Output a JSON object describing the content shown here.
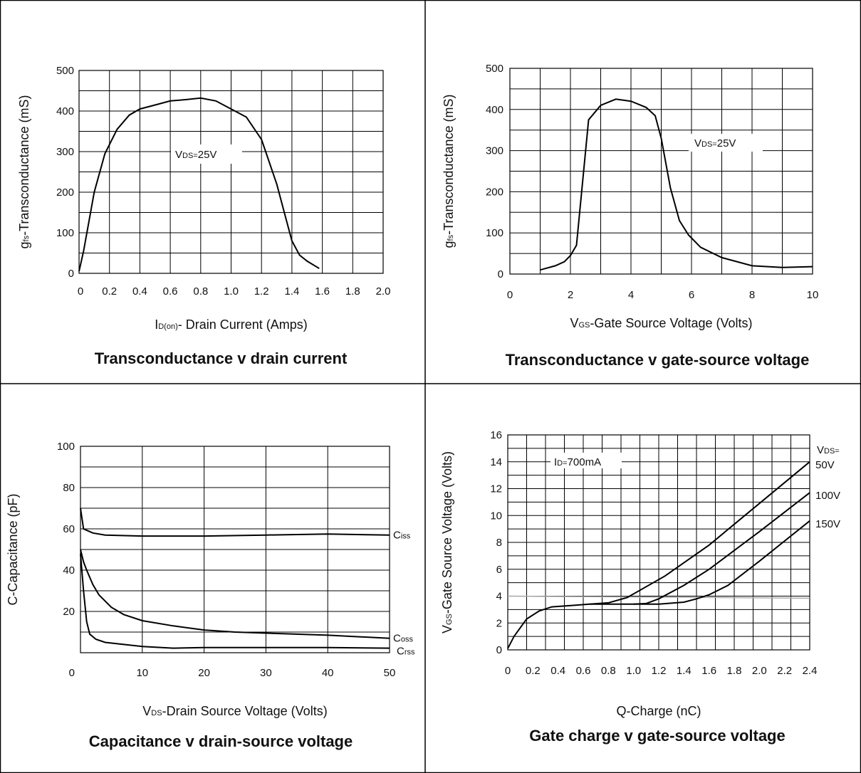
{
  "chart_data": [
    {
      "type": "line",
      "title": "Transconductance v drain current",
      "ylabel_sub": "fs",
      "ylabel_pre": "g",
      "ylabel_post": "-Transconductance (mS)",
      "xlabel_pre": "I",
      "xlabel_sub": "D(on)",
      "xlabel_post": "- Drain Current (Amps)",
      "xticks": [
        "0",
        "0.2",
        "0.4",
        "0.6",
        "0.8",
        "1.0",
        "1.2",
        "1.4",
        "1.6",
        "1.8",
        "2.0"
      ],
      "yticks": [
        "0",
        "100",
        "200",
        "300",
        "400",
        "500"
      ],
      "xlim": [
        0,
        2.0
      ],
      "ylim": [
        0,
        500
      ],
      "x_gridlines": 10,
      "y_gridlines": 10,
      "annotation": {
        "pre": "V",
        "sub": "DS=",
        "post": "25V",
        "x": 0.62,
        "y": 297
      },
      "series": [
        {
          "x": [
            0,
            0.03,
            0.1,
            0.17,
            0.25,
            0.33,
            0.4,
            0.5,
            0.6,
            0.7,
            0.8,
            0.9,
            1.0,
            1.1,
            1.2,
            1.3,
            1.35,
            1.4,
            1.45,
            1.5,
            1.58
          ],
          "y": [
            5,
            55,
            200,
            295,
            355,
            390,
            405,
            415,
            425,
            428,
            432,
            425,
            405,
            385,
            330,
            220,
            150,
            80,
            45,
            30,
            12
          ]
        }
      ]
    },
    {
      "type": "line",
      "title": "Transconductance v gate-source voltage",
      "ylabel_pre": "g",
      "ylabel_sub": "fs",
      "ylabel_post": "-Transconductance (mS)",
      "xlabel_pre": "V",
      "xlabel_sub": "GS",
      "xlabel_post": "-Gate Source Voltage (Volts)",
      "xticks": [
        "0",
        "2",
        "4",
        "6",
        "8",
        "10"
      ],
      "yticks": [
        "0",
        "100",
        "200",
        "300",
        "400",
        "500"
      ],
      "xlim": [
        0,
        10
      ],
      "ylim": [
        0,
        500
      ],
      "x_gridlines": 10,
      "y_gridlines": 10,
      "annotation": {
        "pre": "V",
        "sub": "DS=",
        "post": "25V",
        "x": 6.75,
        "y": 320
      },
      "series": [
        {
          "x": [
            1.0,
            1.5,
            1.8,
            2.0,
            2.2,
            2.6,
            3.0,
            3.5,
            4.0,
            4.5,
            4.8,
            5.0,
            5.3,
            5.6,
            5.9,
            6.3,
            7.0,
            8.0,
            9.0,
            10.0
          ],
          "y": [
            10,
            20,
            30,
            45,
            70,
            375,
            410,
            425,
            420,
            405,
            385,
            330,
            210,
            130,
            95,
            65,
            40,
            20,
            16,
            18
          ]
        }
      ]
    },
    {
      "type": "line",
      "title": "Capacitance v drain-source voltage",
      "ylabel": "C-Capacitance (pF)",
      "xlabel_pre": "V",
      "xlabel_sub": "DS",
      "xlabel_post": "-Drain Source Voltage (Volts)",
      "xticks": [
        "0",
        "10",
        "20",
        "30",
        "40",
        "50"
      ],
      "yticks": [
        "20",
        "40",
        "60",
        "80",
        "100"
      ],
      "xlim": [
        0,
        50
      ],
      "ylim": [
        0,
        100
      ],
      "x_gridlines": 5,
      "y_gridlines": 10,
      "series": [
        {
          "name_pre": "C",
          "name_sub": "iss",
          "x": [
            0,
            0.5,
            2,
            4,
            10,
            20,
            30,
            40,
            50
          ],
          "y": [
            70,
            60,
            58,
            57,
            56.5,
            56.5,
            57,
            57.5,
            57
          ]
        },
        {
          "name_pre": "C",
          "name_sub": "oss",
          "x": [
            0,
            0.5,
            1,
            2,
            3,
            5,
            7,
            10,
            15,
            20,
            25,
            30,
            40,
            50
          ],
          "y": [
            50,
            44,
            40,
            33,
            28,
            22,
            18.5,
            15.5,
            13,
            11,
            10,
            9.5,
            8.5,
            7
          ]
        },
        {
          "name_pre": "C",
          "name_sub": "rss",
          "x": [
            0,
            0.5,
            1,
            1.5,
            2.5,
            4,
            7,
            10,
            15,
            20,
            30,
            40,
            50
          ],
          "y": [
            48,
            30,
            15,
            9,
            6.5,
            5,
            4,
            3,
            2.2,
            2.5,
            2.5,
            2.5,
            2.2
          ]
        }
      ]
    },
    {
      "type": "line",
      "title": "Gate charge v gate-source voltage",
      "ylabel_pre": "V",
      "ylabel_sub": "GS",
      "ylabel_post": "-Gate Source Voltage (Volts)",
      "xlabel": "Q-Charge (nC)",
      "xticks": [
        "0",
        "0.2",
        "0.4",
        "0.6",
        "0.8",
        "1.0",
        "1.2",
        "1.4",
        "1.6",
        "1.8",
        "2.0",
        "2.2",
        "2.4"
      ],
      "yticks": [
        "0",
        "2",
        "4",
        "6",
        "8",
        "10",
        "12",
        "14",
        "16"
      ],
      "xlim": [
        0,
        2.4
      ],
      "ylim": [
        0,
        16
      ],
      "x_gridlines": 16,
      "y_gridlines": 16,
      "annotation": {
        "pre": "I",
        "sub": "D=",
        "post": "700mA",
        "x": 0.75,
        "y": 14
      },
      "legend_header": {
        "pre": "V",
        "sub": "DS=",
        "post": ""
      },
      "reference_line": {
        "y": [
          4.0,
          3.85
        ]
      },
      "series": [
        {
          "name": "50V",
          "x": [
            0,
            0.05,
            0.15,
            0.25,
            0.35,
            0.5,
            0.65,
            0.8,
            0.95,
            1.25,
            1.6,
            2.0,
            2.4
          ],
          "y": [
            0.1,
            1.0,
            2.3,
            2.9,
            3.2,
            3.3,
            3.4,
            3.5,
            3.9,
            5.5,
            7.8,
            10.9,
            14.0
          ]
        },
        {
          "name": "100V",
          "x": [
            0.65,
            0.8,
            1.0,
            1.1,
            1.2,
            1.4,
            1.6,
            2.0,
            2.4
          ],
          "y": [
            3.4,
            3.4,
            3.4,
            3.45,
            3.8,
            4.8,
            6.0,
            8.8,
            11.7
          ]
        },
        {
          "name": "150V",
          "x": [
            1.0,
            1.2,
            1.4,
            1.5,
            1.6,
            1.75,
            2.0,
            2.4
          ],
          "y": [
            3.4,
            3.4,
            3.55,
            3.8,
            4.1,
            4.8,
            6.6,
            9.6
          ]
        }
      ]
    }
  ]
}
